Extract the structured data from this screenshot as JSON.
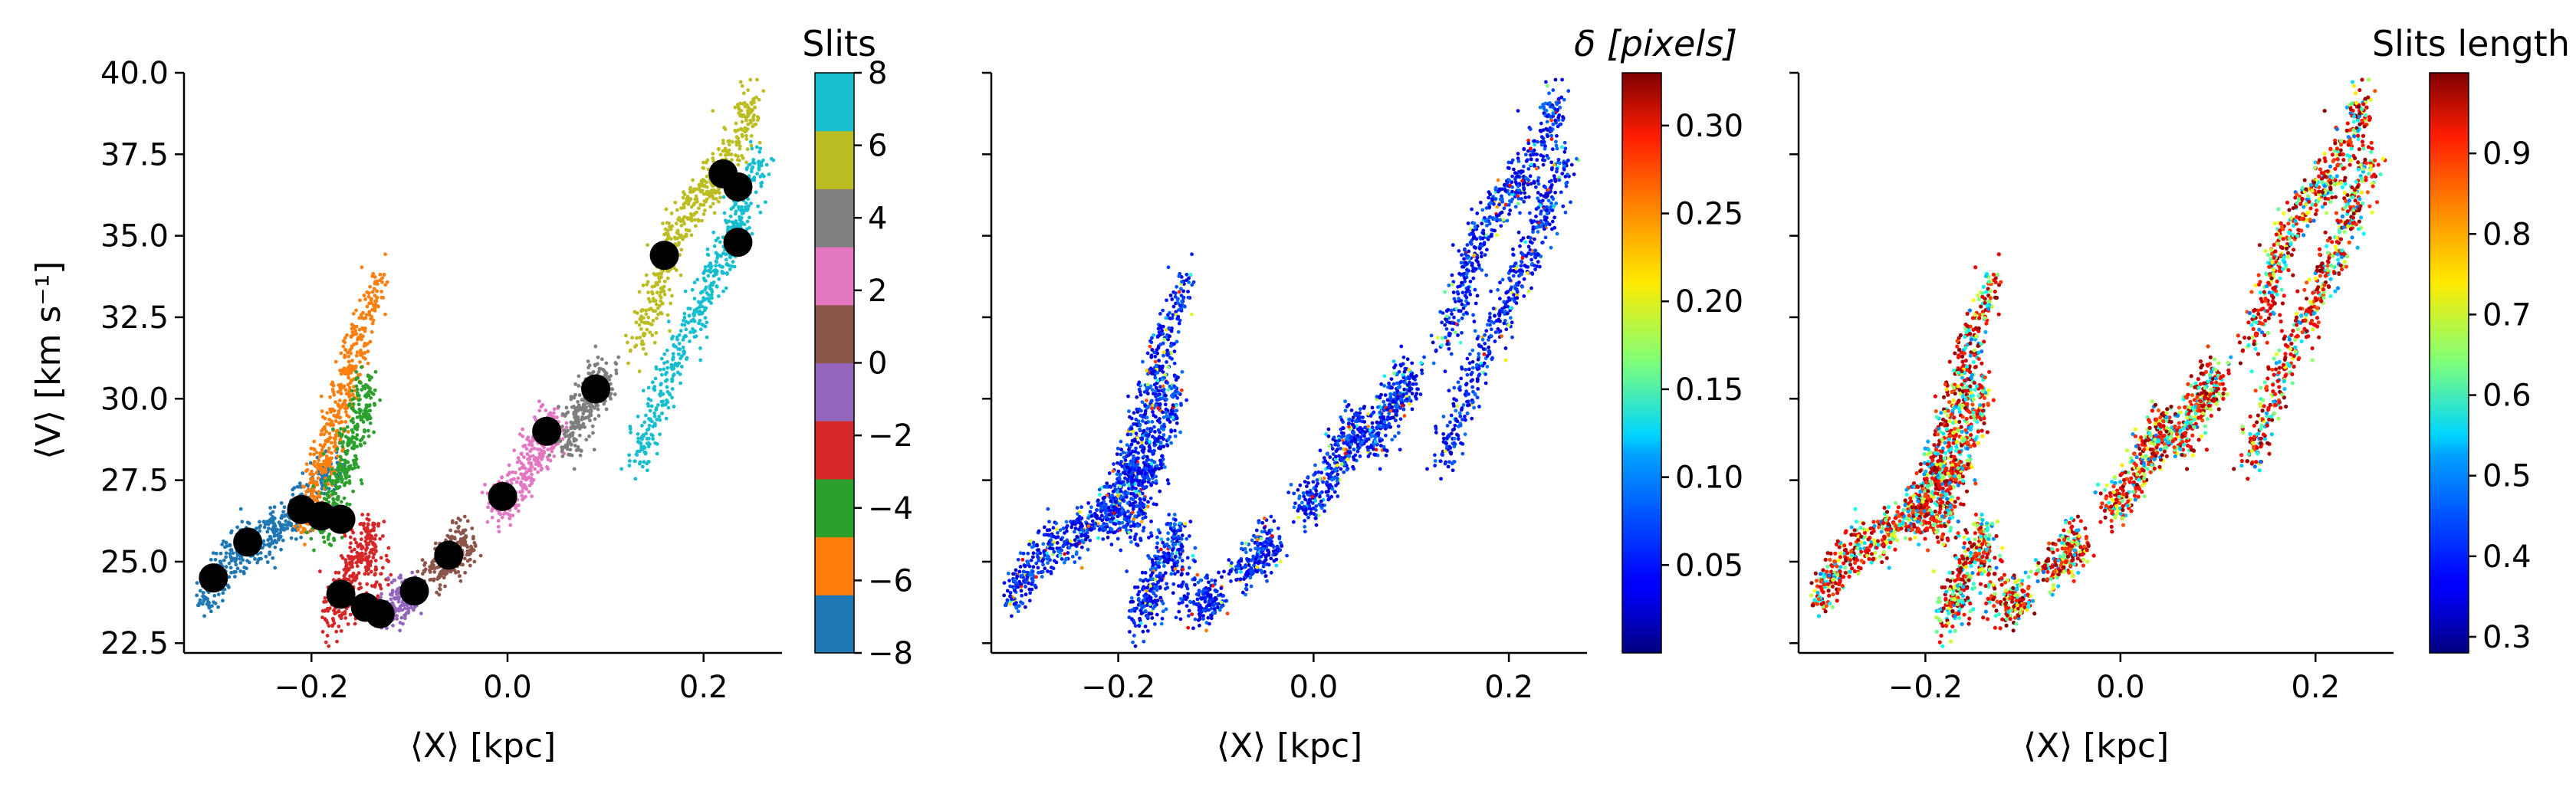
{
  "chart_data": [
    {
      "type": "scatter",
      "panel": "left",
      "xlabel": "⟨X⟩ [kpc]",
      "ylabel": "⟨V⟩ [km s⁻¹]",
      "xlim": [
        -0.33,
        0.28
      ],
      "ylim": [
        22.2,
        40.0
      ],
      "xticks": [
        -0.2,
        0.0,
        0.2
      ],
      "xtick_labels": [
        "−0.2",
        "0.0",
        "0.2"
      ],
      "yticks": [
        22.5,
        25.0,
        27.5,
        30.0,
        32.5,
        35.0,
        37.5,
        40.0
      ],
      "ytick_labels": [
        "22.5",
        "25.0",
        "27.5",
        "30.0",
        "32.5",
        "35.0",
        "37.5",
        "40.0"
      ],
      "point_color_by": "slit index",
      "colorbar": {
        "title": "Slits",
        "range": [
          -8,
          8
        ],
        "ticks": [
          -8,
          -6,
          -4,
          -2,
          0,
          2,
          4,
          6,
          8
        ],
        "tick_labels": [
          "−8",
          "−6",
          "−4",
          "−2",
          "0",
          "2",
          "4",
          "6",
          "8"
        ],
        "colors": [
          "#1f77b4",
          "#ff7f0e",
          "#2ca02c",
          "#d62728",
          "#9467bd",
          "#8c564b",
          "#e377c2",
          "#7f7f7f",
          "#bcbd22",
          "#17becf"
        ]
      },
      "point_clusters": [
        {
          "color": "#1f77b4",
          "points": [
            [
              -0.31,
              23.8
            ],
            [
              -0.3,
              24.5
            ],
            [
              -0.28,
              25.0
            ],
            [
              -0.26,
              25.6
            ],
            [
              -0.24,
              25.9
            ],
            [
              -0.22,
              26.3
            ],
            [
              -0.2,
              27.0
            ],
            [
              -0.18,
              28.0
            ]
          ]
        },
        {
          "color": "#ff7f0e",
          "points": [
            [
              -0.21,
              26.3
            ],
            [
              -0.2,
              26.8
            ],
            [
              -0.19,
              27.8
            ],
            [
              -0.18,
              28.8
            ],
            [
              -0.17,
              29.9
            ],
            [
              -0.16,
              31.0
            ],
            [
              -0.15,
              32.2
            ],
            [
              -0.13,
              33.5
            ]
          ]
        },
        {
          "color": "#2ca02c",
          "points": [
            [
              -0.19,
              26.0
            ],
            [
              -0.18,
              26.5
            ],
            [
              -0.17,
              27.5
            ],
            [
              -0.16,
              28.5
            ],
            [
              -0.15,
              29.5
            ],
            [
              -0.14,
              30.5
            ]
          ]
        },
        {
          "color": "#d62728",
          "points": [
            [
              -0.18,
              23.3
            ],
            [
              -0.17,
              23.8
            ],
            [
              -0.16,
              24.5
            ],
            [
              -0.15,
              25.3
            ],
            [
              -0.14,
              26.0
            ],
            [
              -0.13,
              23.5
            ]
          ]
        },
        {
          "color": "#9467bd",
          "points": [
            [
              -0.12,
              23.5
            ],
            [
              -0.11,
              23.8
            ],
            [
              -0.1,
              24.0
            ]
          ]
        },
        {
          "color": "#8c564b",
          "points": [
            [
              -0.08,
              24.5
            ],
            [
              -0.06,
              25.0
            ],
            [
              -0.05,
              25.4
            ],
            [
              -0.04,
              25.8
            ]
          ]
        },
        {
          "color": "#e377c2",
          "points": [
            [
              -0.01,
              26.7
            ],
            [
              0.0,
              27.0
            ],
            [
              0.02,
              27.8
            ],
            [
              0.03,
              28.5
            ],
            [
              0.04,
              29.0
            ],
            [
              0.05,
              29.3
            ]
          ]
        },
        {
          "color": "#7f7f7f",
          "points": [
            [
              0.06,
              28.5
            ],
            [
              0.07,
              29.2
            ],
            [
              0.08,
              29.8
            ],
            [
              0.09,
              30.3
            ],
            [
              0.1,
              30.7
            ]
          ]
        },
        {
          "color": "#bcbd22",
          "points": [
            [
              0.13,
              31.5
            ],
            [
              0.15,
              33.0
            ],
            [
              0.16,
              34.4
            ],
            [
              0.18,
              35.5
            ],
            [
              0.2,
              36.3
            ],
            [
              0.22,
              37.0
            ],
            [
              0.24,
              38.3
            ],
            [
              0.25,
              39.2
            ]
          ]
        },
        {
          "color": "#17becf",
          "points": [
            [
              0.13,
              28.0
            ],
            [
              0.15,
              29.5
            ],
            [
              0.17,
              31.0
            ],
            [
              0.19,
              32.5
            ],
            [
              0.21,
              33.8
            ],
            [
              0.23,
              34.8
            ],
            [
              0.24,
              36.0
            ],
            [
              0.26,
              37.6
            ]
          ]
        }
      ],
      "slit_centroids": [
        [
          -0.3,
          24.5
        ],
        [
          -0.265,
          25.6
        ],
        [
          -0.21,
          26.6
        ],
        [
          -0.19,
          26.4
        ],
        [
          -0.17,
          26.3
        ],
        [
          -0.17,
          24.0
        ],
        [
          -0.145,
          23.6
        ],
        [
          -0.13,
          23.4
        ],
        [
          -0.095,
          24.1
        ],
        [
          -0.06,
          25.2
        ],
        [
          -0.005,
          27.0
        ],
        [
          0.04,
          29.0
        ],
        [
          0.09,
          30.3
        ],
        [
          0.16,
          34.4
        ],
        [
          0.22,
          36.9
        ],
        [
          0.235,
          36.5
        ],
        [
          0.235,
          34.8
        ]
      ]
    },
    {
      "type": "scatter",
      "panel": "middle",
      "xlabel": "⟨X⟩ [kpc]",
      "xlim": [
        -0.33,
        0.28
      ],
      "ylim": [
        22.2,
        40.0
      ],
      "xticks": [
        -0.2,
        0.0,
        0.2
      ],
      "xtick_labels": [
        "−0.2",
        "0.0",
        "0.2"
      ],
      "point_color_by": "δ [pixels]",
      "colorbar": {
        "title": "δ [pixels]",
        "range": [
          0.0,
          0.33
        ],
        "ticks": [
          0.05,
          0.1,
          0.15,
          0.2,
          0.25,
          0.3
        ],
        "tick_labels": [
          "0.05",
          "0.10",
          "0.15",
          "0.20",
          "0.25",
          "0.30"
        ],
        "colormap": "jet"
      },
      "value_ranges": {
        "typical": [
          0.02,
          0.08
        ],
        "occasional": [
          0.1,
          0.3
        ]
      }
    },
    {
      "type": "scatter",
      "panel": "right",
      "xlabel": "⟨X⟩ [kpc]",
      "xlim": [
        -0.33,
        0.28
      ],
      "ylim": [
        22.2,
        40.0
      ],
      "xticks": [
        -0.2,
        0.0,
        0.2
      ],
      "xtick_labels": [
        "−0.2",
        "0.0",
        "0.2"
      ],
      "point_color_by": "Slits length",
      "colorbar": {
        "title": "Slits length",
        "range": [
          0.28,
          1.0
        ],
        "ticks": [
          0.3,
          0.4,
          0.5,
          0.6,
          0.7,
          0.8,
          0.9
        ],
        "tick_labels": [
          "0.3",
          "0.4",
          "0.5",
          "0.6",
          "0.7",
          "0.8",
          "0.9"
        ],
        "colormap": "jet"
      },
      "value_ranges": {
        "cluster_cores": [
          0.85,
          1.0
        ],
        "faint_outskirts": [
          0.45,
          0.7
        ]
      }
    }
  ]
}
